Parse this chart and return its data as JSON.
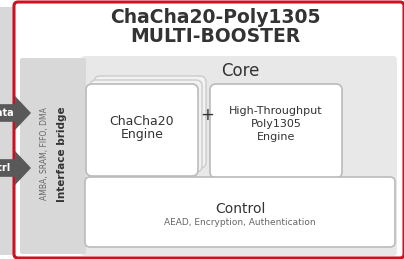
{
  "title_line1": "ChaCha20-Poly1305",
  "title_line2": "MULTI-BOOSTER",
  "bg_color": "#ffffff",
  "outer_border_color": "#cc1122",
  "inner_bg_color": "#e8e8e8",
  "left_strip_color": "#d8d8d8",
  "box_bg_color": "#ffffff",
  "card_color": "#f2f2f2",
  "arrow_color": "#595959",
  "text_color_dark": "#333333",
  "text_color_mid": "#666666",
  "arrow_label_data": "Data",
  "arrow_label_ctrl": "Ctrl",
  "interface_bridge_text": "Interface bridge",
  "interface_bridge_sub": "AMBA, SRAM, FIFO, DMA",
  "core_label": "Core",
  "chacha20_line1": "ChaCha20",
  "chacha20_line2": "Engine",
  "poly1305_line1": "High-Throughput",
  "poly1305_line2": "Poly1305",
  "poly1305_line3": "Engine",
  "control_label": "Control",
  "control_sub": "AEAD, Encryption, Authentication",
  "plus_sign": "+"
}
